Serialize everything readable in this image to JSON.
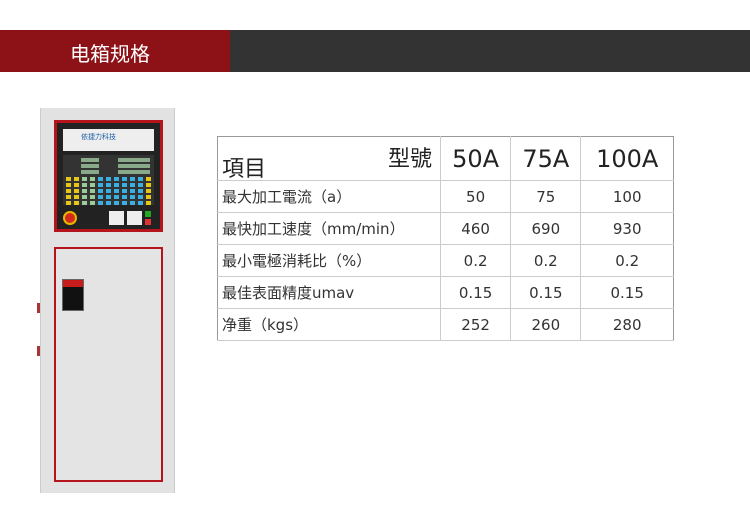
{
  "header": {
    "title": "电箱规格",
    "colors": {
      "accent": "#8c1218",
      "bar": "#333333"
    }
  },
  "table": {
    "corner_item": "項目",
    "corner_model": "型號",
    "models": [
      "50A",
      "75A",
      "100A"
    ],
    "rows": [
      {
        "label": "最大加工電流（a）",
        "values": [
          "50",
          "75",
          "100"
        ]
      },
      {
        "label": "最快加工速度（mm/min）",
        "values": [
          "460",
          "690",
          "930"
        ]
      },
      {
        "label": "最小電極消耗比（%）",
        "values": [
          "0.2",
          "0.2",
          "0.2"
        ]
      },
      {
        "label": "最佳表面精度umav",
        "values": [
          "0.15",
          "0.15",
          "0.15"
        ]
      },
      {
        "label": "净重（kgs）",
        "values": [
          "252",
          "260",
          "280"
        ]
      }
    ]
  },
  "cabinet": {
    "logo_text": "依捷力科技"
  }
}
